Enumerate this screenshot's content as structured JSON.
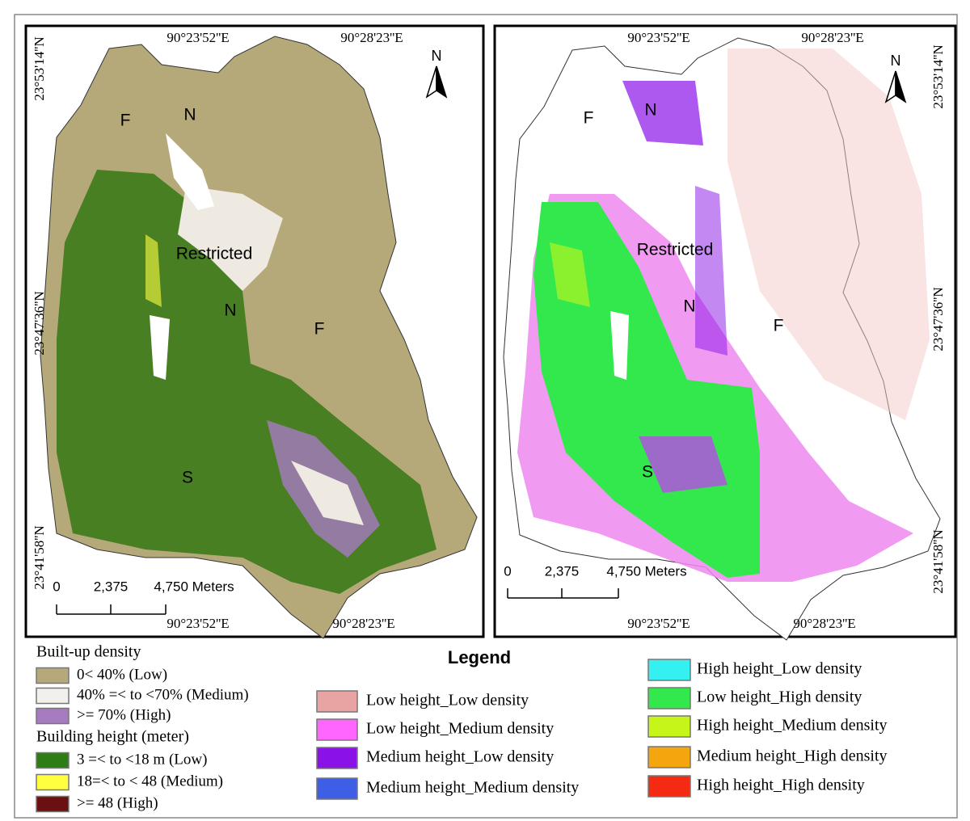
{
  "maps": [
    {
      "top_coords": [
        "90°23'52''E",
        "90°28'23''E"
      ],
      "side_coords": [
        "23°53'14''N",
        "23°47'36''N",
        "23°41'58''N"
      ],
      "bottom_coords": [
        "90°23'52''E",
        "90°28'23''E"
      ],
      "zone_labels": [
        "F",
        "N",
        "Restricted",
        "N",
        "F",
        "S"
      ],
      "north": "N",
      "scale": [
        "0",
        "2,375",
        "4,750 Meters"
      ]
    },
    {
      "top_coords": [
        "90°23'52''E",
        "90°28'23''E"
      ],
      "side_coords": [
        "23°53'14''N",
        "23°47'36''N",
        "23°41'58''N"
      ],
      "bottom_coords": [
        "90°23'52''E",
        "90°28'23''E"
      ],
      "zone_labels": [
        "F",
        "N",
        "Restricted",
        "N",
        "F",
        "S"
      ],
      "north": "N",
      "scale": [
        "0",
        "2,375",
        "4,750 Meters"
      ]
    }
  ],
  "legend": {
    "title": "Legend",
    "density_heading": "Built-up density",
    "density_items": [
      {
        "label": "0< 40% (Low)",
        "color": "#b5a97a"
      },
      {
        "label": "40% =< to <70% (Medium)",
        "color": "#f2f0ec"
      },
      {
        "label": ">= 70% (High)",
        "color": "#a77bc0"
      }
    ],
    "height_heading": "Building height (meter)",
    "height_items": [
      {
        "label": "3 =< to <18 m (Low)",
        "color": "#2e7d14"
      },
      {
        "label": "18=< to < 48 (Medium)",
        "color": "#ffff40"
      },
      {
        "label": ">= 48 (High)",
        "color": "#6b1010"
      }
    ],
    "combo_items_center": [
      {
        "label": "Low height_Low density",
        "color": "#e8a3a3"
      },
      {
        "label": "Low height_Medium density",
        "color": "#ff66ff"
      },
      {
        "label": "Medium height_Low density",
        "color": "#8a12e8"
      },
      {
        "label": "Medium height_Medium density",
        "color": "#3f5ee6"
      }
    ],
    "combo_items_right": [
      {
        "label": "High height_Low density",
        "color": "#35f0f0"
      },
      {
        "label": "Low height_High density",
        "color": "#33e84d"
      },
      {
        "label": "High height_Medium density",
        "color": "#c6f51a"
      },
      {
        "label": "Medium height_High density",
        "color": "#f5a60f"
      },
      {
        "label": "High height_High density",
        "color": "#f52a12"
      }
    ]
  }
}
